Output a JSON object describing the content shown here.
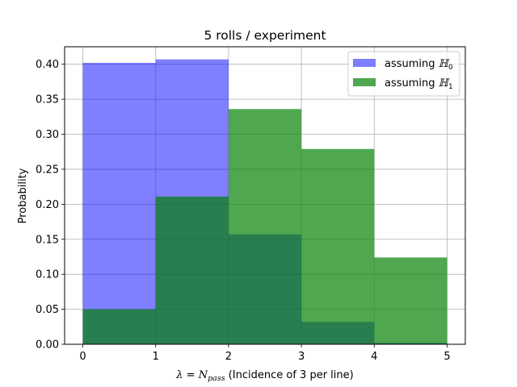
{
  "chart_data": {
    "type": "bar",
    "title": "5 rolls / experiment",
    "xlabel": {
      "lambda": "λ",
      "eq": " = ",
      "n": "N",
      "sub": "pass",
      "rest": " (Incidence of 3 per line)"
    },
    "ylabel": "Probability",
    "xlim": [
      -0.25,
      5.25
    ],
    "ylim": [
      0,
      0.425
    ],
    "xticks": [
      "0",
      "1",
      "2",
      "3",
      "4",
      "5"
    ],
    "yticks": [
      "0.00",
      "0.05",
      "0.10",
      "0.15",
      "0.20",
      "0.25",
      "0.30",
      "0.35",
      "0.40"
    ],
    "grid": true,
    "legend_position": "top-right",
    "bin_edges": [
      0,
      1,
      2,
      3,
      4,
      5
    ],
    "series": [
      {
        "name": "assuming ℍ0",
        "name_main": "assuming ",
        "name_sym": "ℍ",
        "name_sub": "0",
        "color": "#0000ff",
        "opacity": 0.5,
        "values": [
          0.402,
          0.407,
          0.157,
          0.032,
          0.002
        ]
      },
      {
        "name": "assuming ℍ1",
        "name_main": "assuming ",
        "name_sym": "ℍ",
        "name_sub": "1",
        "color": "#008000",
        "opacity": 0.69,
        "values": [
          0.05,
          0.211,
          0.336,
          0.279,
          0.124
        ]
      }
    ]
  }
}
